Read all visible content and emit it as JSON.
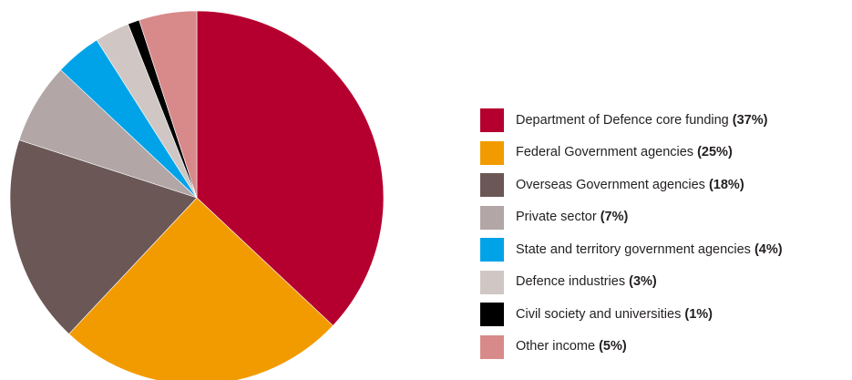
{
  "chart_data": {
    "type": "pie",
    "start_angle": "12 o'clock",
    "direction": "clockwise",
    "legend_position": "right",
    "slices": [
      {
        "label": "Department of Defence core funding",
        "value_label": "(37%)",
        "value": 37,
        "color": "#b5002f"
      },
      {
        "label": "Federal Government agencies",
        "value_label": "(25%)",
        "value": 25,
        "color": "#f29b00"
      },
      {
        "label": "Overseas Government agencies",
        "value_label": "(18%)",
        "value": 18,
        "color": "#6a5756"
      },
      {
        "label": "Private sector",
        "value_label": "(7%)",
        "value": 7,
        "color": "#b2a6a6"
      },
      {
        "label": "State and territory government agencies",
        "value_label": "(4%)",
        "value": 4,
        "color": "#00a3e8"
      },
      {
        "label": "Defence industries",
        "value_label": "(3%)",
        "value": 3,
        "color": "#d0c7c4"
      },
      {
        "label": "Civil society and universities",
        "value_label": "(1%)",
        "value": 1,
        "color": "#000000"
      },
      {
        "label": "Other income",
        "value_label": "(5%)",
        "value": 5,
        "color": "#d88a8a"
      }
    ]
  }
}
